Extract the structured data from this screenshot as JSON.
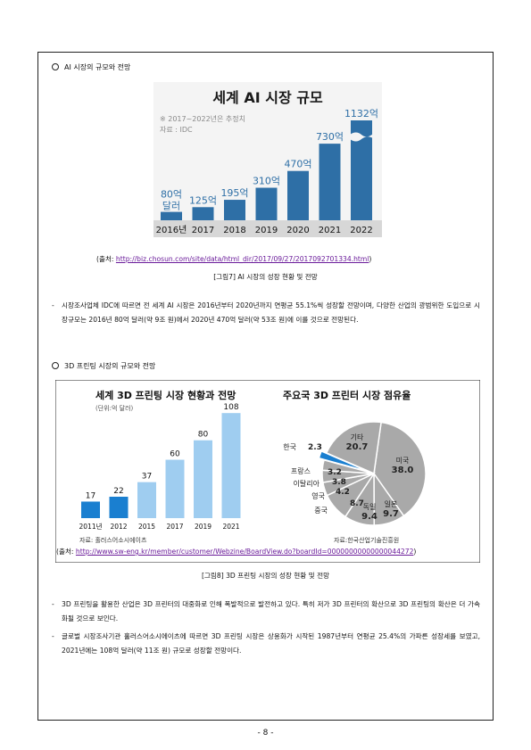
{
  "section1": {
    "heading": "AI 시장의 규모와 전망",
    "chart_data": {
      "type": "bar",
      "title": "세계 AI 시장 규모",
      "note": "※ 2017~2022년은 추정치",
      "source_note": "자료 : IDC",
      "unit_first": "달러",
      "categories": [
        "2016년",
        "2017",
        "2018",
        "2019",
        "2020",
        "2021",
        "2022"
      ],
      "values": [
        80,
        125,
        195,
        310,
        470,
        730,
        1132
      ],
      "value_labels": [
        "80억",
        "125억",
        "195억",
        "310억",
        "470억",
        "730억",
        "1132억"
      ],
      "colors": {
        "bar": "#2e6fa6",
        "axis_band": "#d7d7d7",
        "title": "#1a1a1a"
      }
    },
    "source_prefix": "(출처: ",
    "source_url": "http://biz.chosun.com/site/data/html_dir/2017/09/27/2017092701334.html",
    "source_suffix": ")",
    "caption": "[그림7] AI 시장의 성장 현황 및 전망",
    "paragraph": "시장조사업체 IDC에 따르면 전 세계 AI 시장은 2016년부터 2020년까지 연평균 55.1%씩 성장할 전망이며, 다양한 산업의 광범위한 도입으로 시장규모는 2016년 80억 달러(약 9조 원)에서 2020년 470억 달러(약 53조 원)에 이를 것으로 전망된다."
  },
  "section2": {
    "heading": "3D 프린팅 시장의 규모와 전망",
    "chart_data": [
      {
        "type": "bar",
        "title": "세계 3D 프린팅 시장 현황과 전망",
        "unit": "(단위:억 달러)",
        "categories": [
          "2011년",
          "2012",
          "2015",
          "2017",
          "2019",
          "2021"
        ],
        "values": [
          17,
          22,
          37,
          60,
          80,
          108
        ],
        "source_note": "자료: 홀러스어소시에이츠",
        "colors": {
          "actual": "#1a7fd0",
          "forecast": "#9fcdf0"
        }
      },
      {
        "type": "pie",
        "title": "주요국 3D 프린터 시장 점유율",
        "slices": [
          {
            "label": "미국",
            "value": 38.0,
            "display": "38.0"
          },
          {
            "label": "일본",
            "value": 9.7,
            "display": "9.7"
          },
          {
            "label": "독일",
            "value": 9.4,
            "display": "9.4"
          },
          {
            "label": "중국",
            "value": 8.7,
            "display": "8.7"
          },
          {
            "label": "영국",
            "value": 4.2,
            "display": "4.2"
          },
          {
            "label": "이탈리아",
            "value": 3.8,
            "display": "3.8"
          },
          {
            "label": "프랑스",
            "value": 3.2,
            "display": "3.2"
          },
          {
            "label": "한국",
            "value": 2.3,
            "display": "2.3"
          },
          {
            "label": "기타",
            "value": 20.7,
            "display": "20.7"
          }
        ],
        "source_note": "자료:한국산업기술진흥원",
        "colors": {
          "grey": "#a9a9a9",
          "korea": "#1a7fd0"
        }
      }
    ],
    "source_prefix": "(출처: ",
    "source_url": "http://www.sw-eng.kr/member/customer/Webzine/BoardView.do?boardId=00000000000000044272",
    "source_suffix": ")",
    "caption": "[그림8] 3D 프린팅 시장의 성장 현황 및 전망",
    "paragraphs": [
      "3D 프린팅을 활용한 산업은 3D 프린터의 대중화로 인해 폭발적으로 발전하고 있다. 특히 저가 3D 프린터의 확산으로 3D 프린팅의 확산은 더 가속화될 것으로 보인다.",
      "글로벌 시장조사기관 홀러스어소시에이츠에 따르면 3D 프린팅 시장은 상용화가 시작된 1987년부터 연평균 25.4%의 가파른 성장세를 보였고, 2021년에는 108억 달러(약 11조 원) 규모로 성장할 전망이다."
    ]
  },
  "page_number": "- 8 -"
}
